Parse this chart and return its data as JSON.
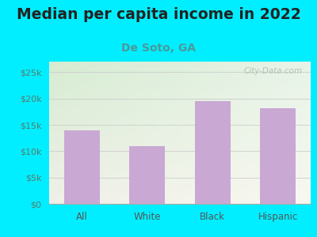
{
  "title": "Median per capita income in 2022",
  "subtitle": "De Soto, GA",
  "categories": [
    "All",
    "White",
    "Black",
    "Hispanic"
  ],
  "values": [
    14000,
    11000,
    19500,
    18200
  ],
  "bar_color": "#c9a8d4",
  "title_fontsize": 13.5,
  "subtitle_fontsize": 10,
  "subtitle_color": "#4a9a9a",
  "title_color": "#222222",
  "ylim": [
    0,
    27000
  ],
  "yticks": [
    0,
    5000,
    10000,
    15000,
    20000,
    25000
  ],
  "ytick_labels": [
    "$0",
    "$5k",
    "$10k",
    "$15k",
    "$20k",
    "$25k"
  ],
  "background_outer": "#00eeff",
  "background_inner_topleft": "#d6ecd2",
  "background_inner_topright": "#e8f4e8",
  "background_inner_bottom": "#f0f0e8",
  "watermark": "City-Data.com",
  "tick_label_color": "#5a7a6a",
  "xtick_label_color": "#555555",
  "bar_width": 0.55,
  "grid_color": "#cccccc",
  "spine_color": "#aaaaaa"
}
